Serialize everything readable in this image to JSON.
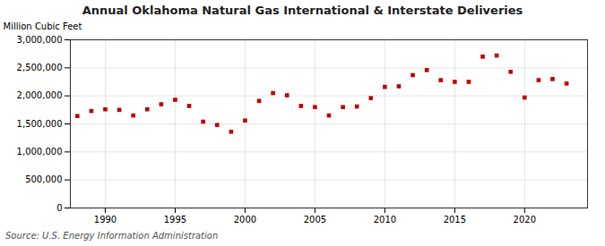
{
  "chart_data": {
    "type": "scatter",
    "title": "Annual Oklahoma Natural Gas International & Interstate Deliveries",
    "ylabel": "Million Cubic Feet",
    "caption": "Source: U.S. Energy Information Administration",
    "x": [
      1988,
      1989,
      1990,
      1991,
      1992,
      1993,
      1994,
      1995,
      1996,
      1997,
      1998,
      1999,
      2000,
      2001,
      2002,
      2003,
      2004,
      2005,
      2006,
      2007,
      2008,
      2009,
      2010,
      2011,
      2012,
      2013,
      2014,
      2015,
      2016,
      2017,
      2018,
      2019,
      2020,
      2021,
      2022,
      2023
    ],
    "values": [
      1640000,
      1730000,
      1760000,
      1750000,
      1650000,
      1760000,
      1850000,
      1930000,
      1820000,
      1540000,
      1480000,
      1360000,
      1560000,
      1910000,
      2050000,
      2010000,
      1820000,
      1800000,
      1650000,
      1800000,
      1810000,
      1960000,
      2160000,
      2170000,
      2370000,
      2460000,
      2280000,
      2250000,
      2250000,
      2700000,
      2720000,
      2430000,
      1970000,
      2280000,
      2300000,
      2220000
    ],
    "color": "#c00000",
    "marker": "square",
    "xlim": [
      1987.5,
      2024.5
    ],
    "xticks": [
      1990,
      1995,
      2000,
      2005,
      2010,
      2015,
      2020
    ],
    "ylim": [
      0,
      3000000
    ],
    "yticks": [
      0,
      {
        "value": 500000,
        "label": "500,000"
      },
      {
        "value": 1000000,
        "label": "1,000,000"
      },
      {
        "value": 1500000,
        "label": "1,500,000"
      },
      {
        "value": 2000000,
        "label": "2,000,000"
      },
      {
        "value": 2500000,
        "label": "2,500,000"
      },
      {
        "value": 3000000,
        "label": "3,000,000"
      }
    ],
    "grid": true
  }
}
